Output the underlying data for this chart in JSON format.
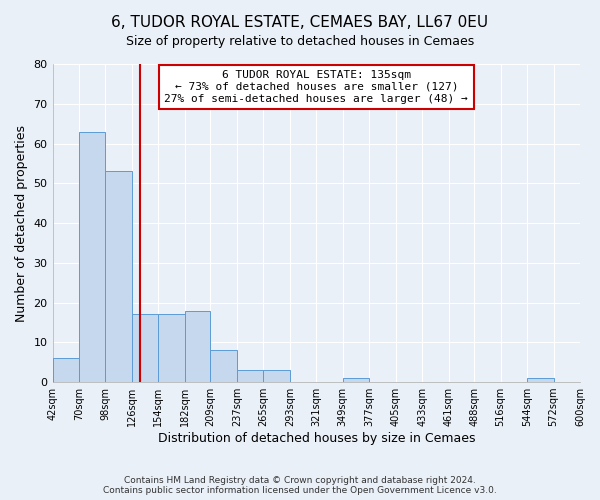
{
  "title": "6, TUDOR ROYAL ESTATE, CEMAES BAY, LL67 0EU",
  "subtitle": "Size of property relative to detached houses in Cemaes",
  "xlabel": "Distribution of detached houses by size in Cemaes",
  "ylabel": "Number of detached properties",
  "bar_edges": [
    42,
    70,
    98,
    126,
    154,
    182,
    209,
    237,
    265,
    293,
    321,
    349,
    377,
    405,
    433,
    461,
    488,
    516,
    544,
    572,
    600
  ],
  "bar_heights": [
    6,
    63,
    53,
    17,
    17,
    18,
    8,
    3,
    3,
    0,
    0,
    1,
    0,
    0,
    0,
    0,
    0,
    0,
    1,
    0
  ],
  "bar_color": "#c5d8ed",
  "bar_edgecolor": "#5b9bd5",
  "bg_color": "#eaf0f8",
  "grid_color": "#ffffff",
  "vline_x": 135,
  "vline_color": "#cc0000",
  "annotation_text": "6 TUDOR ROYAL ESTATE: 135sqm\n← 73% of detached houses are smaller (127)\n27% of semi-detached houses are larger (48) →",
  "annotation_box_color": "#cc0000",
  "ylim": [
    0,
    80
  ],
  "yticks": [
    0,
    10,
    20,
    30,
    40,
    50,
    60,
    70,
    80
  ],
  "tick_labels": [
    "42sqm",
    "70sqm",
    "98sqm",
    "126sqm",
    "154sqm",
    "182sqm",
    "209sqm",
    "237sqm",
    "265sqm",
    "293sqm",
    "321sqm",
    "349sqm",
    "377sqm",
    "405sqm",
    "433sqm",
    "461sqm",
    "488sqm",
    "516sqm",
    "544sqm",
    "572sqm",
    "600sqm"
  ],
  "footer_line1": "Contains HM Land Registry data © Crown copyright and database right 2024.",
  "footer_line2": "Contains public sector information licensed under the Open Government Licence v3.0."
}
